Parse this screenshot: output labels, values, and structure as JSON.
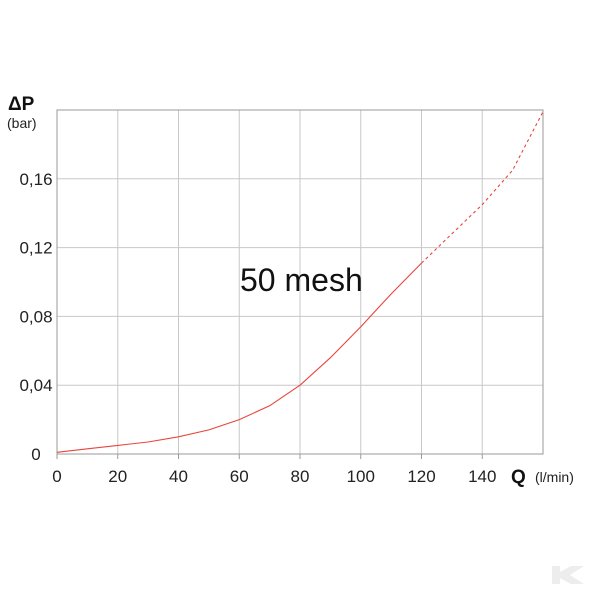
{
  "chart_data": {
    "type": "line",
    "title": "",
    "xlim": [
      0,
      160
    ],
    "ylim": [
      0,
      0.2
    ],
    "grid": true,
    "x_axis": {
      "letter": "Q",
      "unit": "(l/min)",
      "ticks": [
        "0",
        "20",
        "40",
        "60",
        "80",
        "100",
        "120",
        "140"
      ],
      "tick_values": [
        0,
        20,
        40,
        60,
        80,
        100,
        120,
        140
      ]
    },
    "y_axis": {
      "letter": "ΔP",
      "unit": "(bar)",
      "ticks": [
        "0",
        "0,04",
        "0,08",
        "0,12",
        "0,16"
      ],
      "tick_values": [
        0,
        0.04,
        0.08,
        0.12,
        0.16
      ]
    },
    "annotation": "50 mesh",
    "series": [
      {
        "color": "#e8453c",
        "solid": {
          "x": [
            0,
            10,
            20,
            30,
            40,
            50,
            60,
            70,
            80,
            90,
            100,
            110,
            120
          ],
          "y": [
            0.001,
            0.003,
            0.005,
            0.007,
            0.01,
            0.014,
            0.02,
            0.028,
            0.04,
            0.056,
            0.074,
            0.093,
            0.111
          ]
        },
        "dashed": {
          "x": [
            120,
            130,
            140,
            150,
            160
          ],
          "y": [
            0.111,
            0.128,
            0.145,
            0.165,
            0.199
          ]
        }
      }
    ]
  },
  "watermark": "K"
}
